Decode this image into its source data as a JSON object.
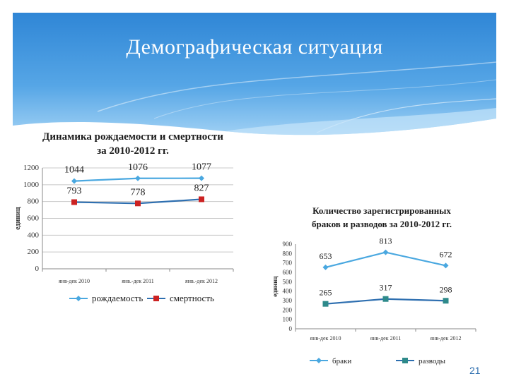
{
  "slide": {
    "title": "Демографическая ситуация",
    "page_number": "21"
  },
  "chart_data": [
    {
      "type": "line",
      "title": "Динамика рождаемости и смертности за 2010-2012 гг.",
      "title_lines": [
        "Динамика рождаемости и смертности",
        "за 2010-2012 гг."
      ],
      "ylabel": "единиц",
      "categories": [
        "янв-дек 2010",
        "янв.-дек 2011",
        "янв.-дек 2012"
      ],
      "ylim": [
        0,
        1200
      ],
      "yticks": [
        0,
        200,
        400,
        600,
        800,
        1000,
        1200
      ],
      "grid": true,
      "legend": "bottom",
      "series": [
        {
          "name": "рождаемость",
          "values": [
            1044,
            1076,
            1077
          ],
          "color": "#4aa8e0",
          "marker": "diamond"
        },
        {
          "name": "смертность",
          "values": [
            793,
            778,
            827
          ],
          "color": "#2e6fb0",
          "marker_color": "#cc2222",
          "marker": "square"
        }
      ]
    },
    {
      "type": "line",
      "title": "Количество зарегистрированных браков и разводов за 2010-2012 гг.",
      "title_lines": [
        "Количество зарегистрированных",
        "браков и разводов за 2010-2012 гг."
      ],
      "ylabel": "единиц",
      "categories": [
        "янв-дек 2010",
        "янв-дек 2011",
        "янв-дек 2012"
      ],
      "ylim": [
        0,
        900
      ],
      "yticks": [
        0,
        100,
        200,
        300,
        400,
        500,
        600,
        700,
        800,
        900
      ],
      "grid": false,
      "legend": "bottom",
      "series": [
        {
          "name": "браки",
          "values": [
            653,
            813,
            672
          ],
          "color": "#4aa8e0",
          "marker": "diamond"
        },
        {
          "name": "разводы",
          "values": [
            265,
            317,
            298
          ],
          "color": "#2e6fb0",
          "marker_color": "#2e8a8a",
          "marker": "square"
        }
      ]
    }
  ]
}
